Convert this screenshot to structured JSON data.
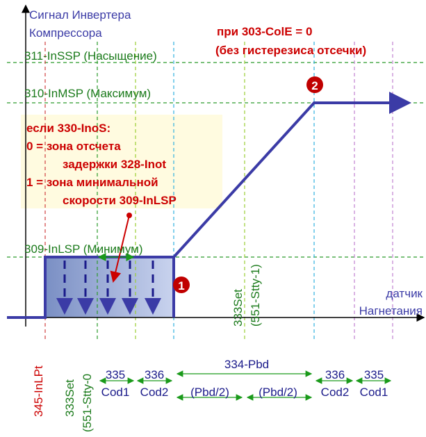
{
  "axis": {
    "y_label": [
      "Сигнал Инвертера",
      "Компрессора"
    ],
    "x_label": [
      "датчик",
      "Нагнетания"
    ]
  },
  "note": {
    "title": [
      "при 303-ColE = 0",
      "(без гистерезиса отсечки)"
    ],
    "lines": [
      "если 330-InoS:",
      "0 = зона отсчета",
      "задержки 328-Inot",
      "1 = зона минимальной",
      "скорости 309-InLSP"
    ]
  },
  "levels": {
    "saturation": "311-InSSP (Насыщение)",
    "maximum": "310-InMSP (Максимум)",
    "minimum": "309-InLSP (Минимум)"
  },
  "markers": [
    "1",
    "2"
  ],
  "vertical_labels": {
    "setpoint1": [
      "333Set",
      "(551-Stty-1)"
    ],
    "lpt": "345-InLPt",
    "setpoint0": [
      "333Set",
      "(551-Stty-0"
    ]
  },
  "bottom": {
    "cod1_left": [
      "335",
      "Cod1"
    ],
    "cod2_left": [
      "336",
      "Cod2"
    ],
    "pbd": "334-Pbd",
    "half_left": "(Pbd/2)",
    "half_right": "(Pbd/2)",
    "cod2_right": [
      "336",
      "Cod2"
    ],
    "cod1_right": [
      "335",
      "Cod1"
    ]
  }
}
